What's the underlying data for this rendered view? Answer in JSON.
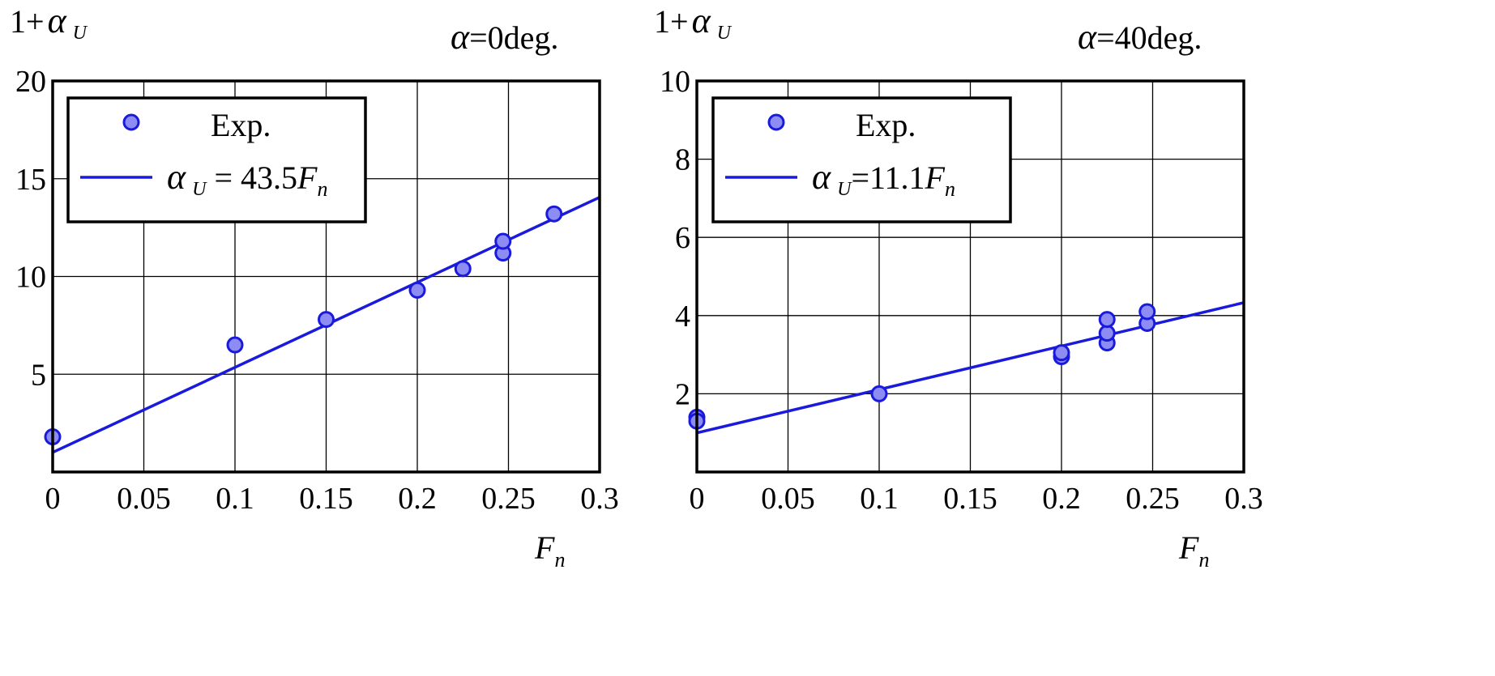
{
  "colors": {
    "series": "#1a1adc",
    "marker_fill": "#8c8cf2",
    "axis": "#000000",
    "grid": "#000000"
  },
  "chart_data": [
    {
      "type": "scatter",
      "title": "α=0deg.",
      "title_parts": {
        "symbol": "α",
        "rest": "=0deg."
      },
      "ylabel_parts": {
        "prefix": "1+",
        "symbol": "α",
        "sub": "U"
      },
      "xlabel_parts": {
        "main": "F",
        "sub": "n"
      },
      "xlim": [
        0,
        0.3
      ],
      "ylim": [
        0,
        20
      ],
      "xticks": [
        0,
        0.05,
        0.1,
        0.15,
        0.2,
        0.25,
        0.3
      ],
      "xtick_labels": [
        "0",
        "0.05",
        "0.1",
        "0.15",
        "0.2",
        "0.25",
        "0.3"
      ],
      "yticks": [
        5,
        10,
        15,
        20
      ],
      "ytick_labels": [
        "5",
        "10",
        "15",
        "20"
      ],
      "grid": true,
      "legend_position": "top-left",
      "series": [
        {
          "name": "Exp.",
          "kind": "points",
          "x": [
            0,
            0.1,
            0.15,
            0.2,
            0.225,
            0.247,
            0.247,
            0.275
          ],
          "y": [
            1.8,
            6.5,
            7.8,
            9.3,
            10.4,
            11.2,
            11.8,
            13.2
          ]
        },
        {
          "name": "α U = 43.5Fn",
          "kind": "line",
          "legend_parts": {
            "symbol": "α",
            "sub": "U",
            "eq": " = 43.5",
            "var": "F",
            "var_sub": "n"
          },
          "x": [
            0,
            0.3
          ],
          "y": [
            1.0,
            14.05
          ]
        }
      ]
    },
    {
      "type": "scatter",
      "title": "α=40deg.",
      "title_parts": {
        "symbol": "α",
        "rest": "=40deg."
      },
      "ylabel_parts": {
        "prefix": "1+",
        "symbol": "α",
        "sub": "U"
      },
      "xlabel_parts": {
        "main": "F",
        "sub": "n"
      },
      "xlim": [
        0,
        0.3
      ],
      "ylim": [
        0,
        10
      ],
      "xticks": [
        0,
        0.05,
        0.1,
        0.15,
        0.2,
        0.25,
        0.3
      ],
      "xtick_labels": [
        "0",
        "0.05",
        "0.1",
        "0.15",
        "0.2",
        "0.25",
        "0.3"
      ],
      "yticks": [
        2,
        4,
        6,
        8,
        10
      ],
      "ytick_labels": [
        "2",
        "4",
        "6",
        "8",
        "10"
      ],
      "grid": true,
      "legend_position": "top-left",
      "series": [
        {
          "name": "Exp.",
          "kind": "points",
          "x": [
            0,
            0,
            0.1,
            0.2,
            0.2,
            0.225,
            0.225,
            0.225,
            0.247,
            0.247
          ],
          "y": [
            1.4,
            1.3,
            2.0,
            2.95,
            3.05,
            3.3,
            3.55,
            3.9,
            3.8,
            4.1
          ]
        },
        {
          "name": "α U=11.1Fn",
          "kind": "line",
          "legend_parts": {
            "symbol": "α",
            "sub": "U",
            "eq": "=11.1",
            "var": "F",
            "var_sub": "n"
          },
          "x": [
            0,
            0.3
          ],
          "y": [
            1.0,
            4.33
          ]
        }
      ]
    }
  ]
}
